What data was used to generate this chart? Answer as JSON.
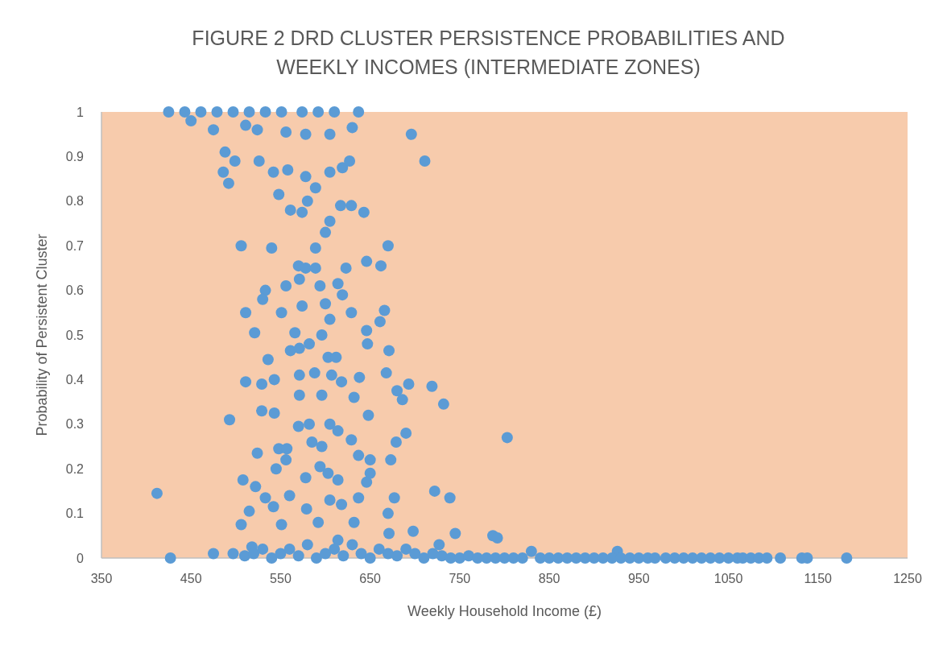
{
  "chart_data": {
    "type": "scatter",
    "title": "FIGURE 2 DRD CLUSTER PERSISTENCE PROBABILITIES AND WEEKLY INCOMES (INTERMEDIATE ZONES)",
    "xlabel": "Weekly Household Income (£)",
    "ylabel": "Probability of Persistent Cluster",
    "marker": "circle",
    "xlim": [
      350,
      1250
    ],
    "xticks": [
      350,
      450,
      550,
      650,
      750,
      850,
      950,
      1050,
      1150,
      1250
    ],
    "ylim": [
      0,
      1
    ],
    "yticks": [
      0,
      0.1,
      0.2,
      0.3,
      0.4,
      0.5,
      0.6,
      0.7,
      0.8,
      0.9,
      1
    ],
    "series": [
      {
        "color": "#5b9bd5",
        "x": [
          425,
          443,
          461,
          479,
          497,
          515,
          533,
          551,
          574,
          592,
          610,
          637,
          450,
          475,
          511,
          524,
          556,
          578,
          605,
          630,
          696,
          711,
          488,
          499,
          486,
          492,
          526,
          542,
          558,
          548,
          578,
          589,
          605,
          619,
          627,
          506,
          540,
          561,
          574,
          580,
          600,
          605,
          617,
          629,
          643,
          670,
          662,
          646,
          623,
          589,
          570,
          578,
          589,
          571,
          533,
          556,
          594,
          614,
          619,
          511,
          530,
          551,
          574,
          600,
          605,
          629,
          666,
          661,
          521,
          566,
          596,
          646,
          647,
          582,
          561,
          571,
          603,
          612,
          671,
          536,
          511,
          529,
          543,
          571,
          588,
          607,
          618,
          638,
          668,
          693,
          719,
          732,
          680,
          686,
          632,
          648,
          571,
          596,
          543,
          529,
          493,
          605,
          614,
          570,
          582,
          679,
          690,
          629,
          803,
          585,
          596,
          548,
          557,
          524,
          556,
          637,
          673,
          650,
          545,
          594,
          603,
          650,
          508,
          578,
          614,
          646,
          522,
          412,
          722,
          739,
          533,
          560,
          605,
          637,
          677,
          542,
          579,
          618,
          670,
          515,
          506,
          551,
          592,
          632,
          671,
          698,
          745,
          787,
          792,
          727,
          518,
          614,
          830,
          926,
          427,
          475,
          497,
          510,
          520,
          530,
          540,
          550,
          560,
          570,
          580,
          590,
          600,
          610,
          620,
          630,
          640,
          650,
          660,
          670,
          680,
          690,
          700,
          710,
          720,
          730,
          740,
          750,
          760,
          770,
          780,
          790,
          800,
          810,
          820,
          840,
          850,
          860,
          870,
          880,
          890,
          900,
          910,
          920,
          930,
          940,
          950,
          960,
          968,
          980,
          990,
          1000,
          1010,
          1020,
          1030,
          1040,
          1050,
          1060,
          1066,
          1075,
          1084,
          1093,
          1108,
          1132,
          1138,
          1182
        ],
        "values": [
          1,
          1,
          1,
          1,
          1,
          1,
          1,
          1,
          1,
          1,
          1,
          1,
          0.98,
          0.96,
          0.97,
          0.96,
          0.955,
          0.95,
          0.95,
          0.965,
          0.95,
          0.89,
          0.91,
          0.89,
          0.865,
          0.84,
          0.89,
          0.865,
          0.87,
          0.815,
          0.855,
          0.83,
          0.865,
          0.875,
          0.89,
          0.7,
          0.695,
          0.78,
          0.775,
          0.8,
          0.73,
          0.755,
          0.79,
          0.79,
          0.775,
          0.7,
          0.655,
          0.665,
          0.65,
          0.695,
          0.655,
          0.65,
          0.65,
          0.625,
          0.6,
          0.61,
          0.61,
          0.615,
          0.59,
          0.55,
          0.58,
          0.55,
          0.565,
          0.57,
          0.535,
          0.55,
          0.555,
          0.53,
          0.505,
          0.505,
          0.5,
          0.51,
          0.48,
          0.48,
          0.465,
          0.47,
          0.45,
          0.45,
          0.465,
          0.445,
          0.395,
          0.39,
          0.4,
          0.41,
          0.415,
          0.41,
          0.395,
          0.405,
          0.415,
          0.39,
          0.385,
          0.345,
          0.375,
          0.355,
          0.36,
          0.32,
          0.365,
          0.365,
          0.325,
          0.33,
          0.31,
          0.3,
          0.285,
          0.295,
          0.3,
          0.26,
          0.28,
          0.265,
          0.27,
          0.26,
          0.25,
          0.245,
          0.245,
          0.235,
          0.22,
          0.23,
          0.22,
          0.22,
          0.2,
          0.205,
          0.19,
          0.19,
          0.175,
          0.18,
          0.175,
          0.17,
          0.16,
          0.145,
          0.15,
          0.135,
          0.135,
          0.14,
          0.13,
          0.135,
          0.135,
          0.115,
          0.11,
          0.12,
          0.1,
          0.105,
          0.075,
          0.075,
          0.08,
          0.08,
          0.055,
          0.06,
          0.055,
          0.05,
          0.045,
          0.03,
          0.025,
          0.04,
          0.015,
          0.015,
          0,
          0.01,
          0.01,
          0.005,
          0.01,
          0.02,
          0,
          0.01,
          0.02,
          0.005,
          0.03,
          0,
          0.01,
          0.02,
          0.005,
          0.03,
          0.01,
          0,
          0.02,
          0.01,
          0.005,
          0.02,
          0.01,
          0,
          0.01,
          0.005,
          0,
          0,
          0.005,
          0,
          0,
          0,
          0,
          0,
          0,
          0,
          0,
          0,
          0,
          0,
          0,
          0,
          0,
          0,
          0,
          0,
          0,
          0,
          0,
          0,
          0,
          0,
          0,
          0,
          0,
          0,
          0,
          0,
          0,
          0,
          0,
          0,
          0,
          0,
          0,
          0
        ]
      }
    ]
  }
}
